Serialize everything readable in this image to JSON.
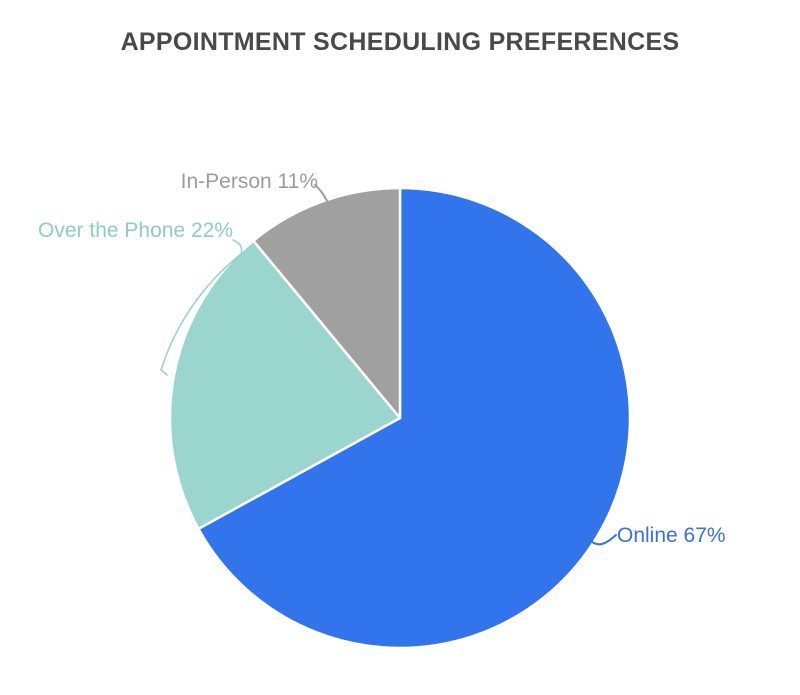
{
  "page": {
    "background": "#ffffff"
  },
  "header": {
    "title": "APPOINTMENT SCHEDULING PREFERENCES",
    "title_color": "#494949"
  },
  "chart_data": {
    "type": "pie",
    "title": "APPOINTMENT SCHEDULING PREFERENCES",
    "total": 100,
    "start_angle_deg": 0,
    "direction": "clockwise",
    "legend_position": "outside-labels-with-leader-lines",
    "slices": [
      {
        "label": "Online",
        "value": 67,
        "display": "Online 67%",
        "color": "#3274EC",
        "label_color": "#3A70D9",
        "leader_color": "#3A70D9"
      },
      {
        "label": "Over the Phone",
        "value": 22,
        "display": "Over the Phone 22%",
        "color": "#9AD5CE",
        "label_color": "#8CCDC6",
        "leader_color": "#9CCFC9"
      },
      {
        "label": "In-Person",
        "value": 11,
        "display": "In-Person 11%",
        "color": "#A0A0A0",
        "label_color": "#9C9C9C",
        "leader_color": "#9E9E9E"
      }
    ]
  }
}
